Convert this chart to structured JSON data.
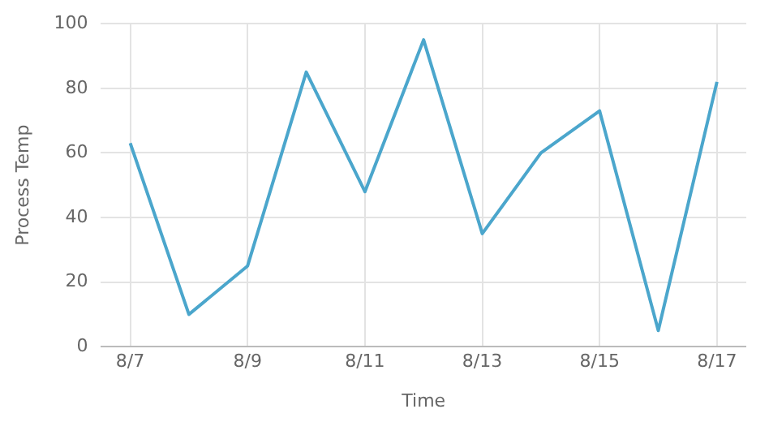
{
  "chart_data": {
    "type": "line",
    "xlabel": "Time",
    "ylabel": "Process Temp",
    "categories": [
      "8/7",
      null,
      "8/9",
      null,
      "8/11",
      null,
      "8/13",
      null,
      "8/15",
      null,
      "8/17"
    ],
    "series": [
      {
        "color": "#4ba6cc",
        "values": [
          63,
          10,
          25,
          85,
          48,
          95,
          35,
          60,
          73,
          5,
          82
        ]
      }
    ],
    "ylim": [
      0,
      100
    ],
    "yticks": [
      0,
      20,
      40,
      60,
      80,
      100
    ],
    "grid": true,
    "legend": false,
    "marker": "none",
    "line_style": "solid"
  }
}
